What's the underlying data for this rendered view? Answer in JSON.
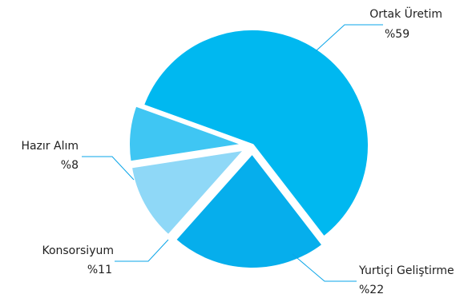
{
  "chart_data": {
    "type": "pie",
    "value_prefix": "%",
    "colors": {
      "slice_stroke": "#ffffff",
      "leader_line": "#0aa5e8",
      "label_text": "#1e1e1e"
    },
    "slices": [
      {
        "label": "Ortak Üretim",
        "value": 59,
        "value_text": "%59",
        "color": "#00b8f0",
        "exploded": false,
        "label_side": "top-right"
      },
      {
        "label": "Yurtiçi Geliştirme",
        "value": 22,
        "value_text": "%22",
        "color": "#06aeec",
        "exploded": true,
        "label_side": "bottom-right"
      },
      {
        "label": "Konsorsiyum",
        "value": 11,
        "value_text": "%11",
        "color": "#8fd8f7",
        "exploded": true,
        "label_side": "bottom-left"
      },
      {
        "label": "Hazır Alım",
        "value": 8,
        "value_text": "%8",
        "color": "#3fc6f3",
        "exploded": true,
        "label_side": "left"
      }
    ]
  }
}
